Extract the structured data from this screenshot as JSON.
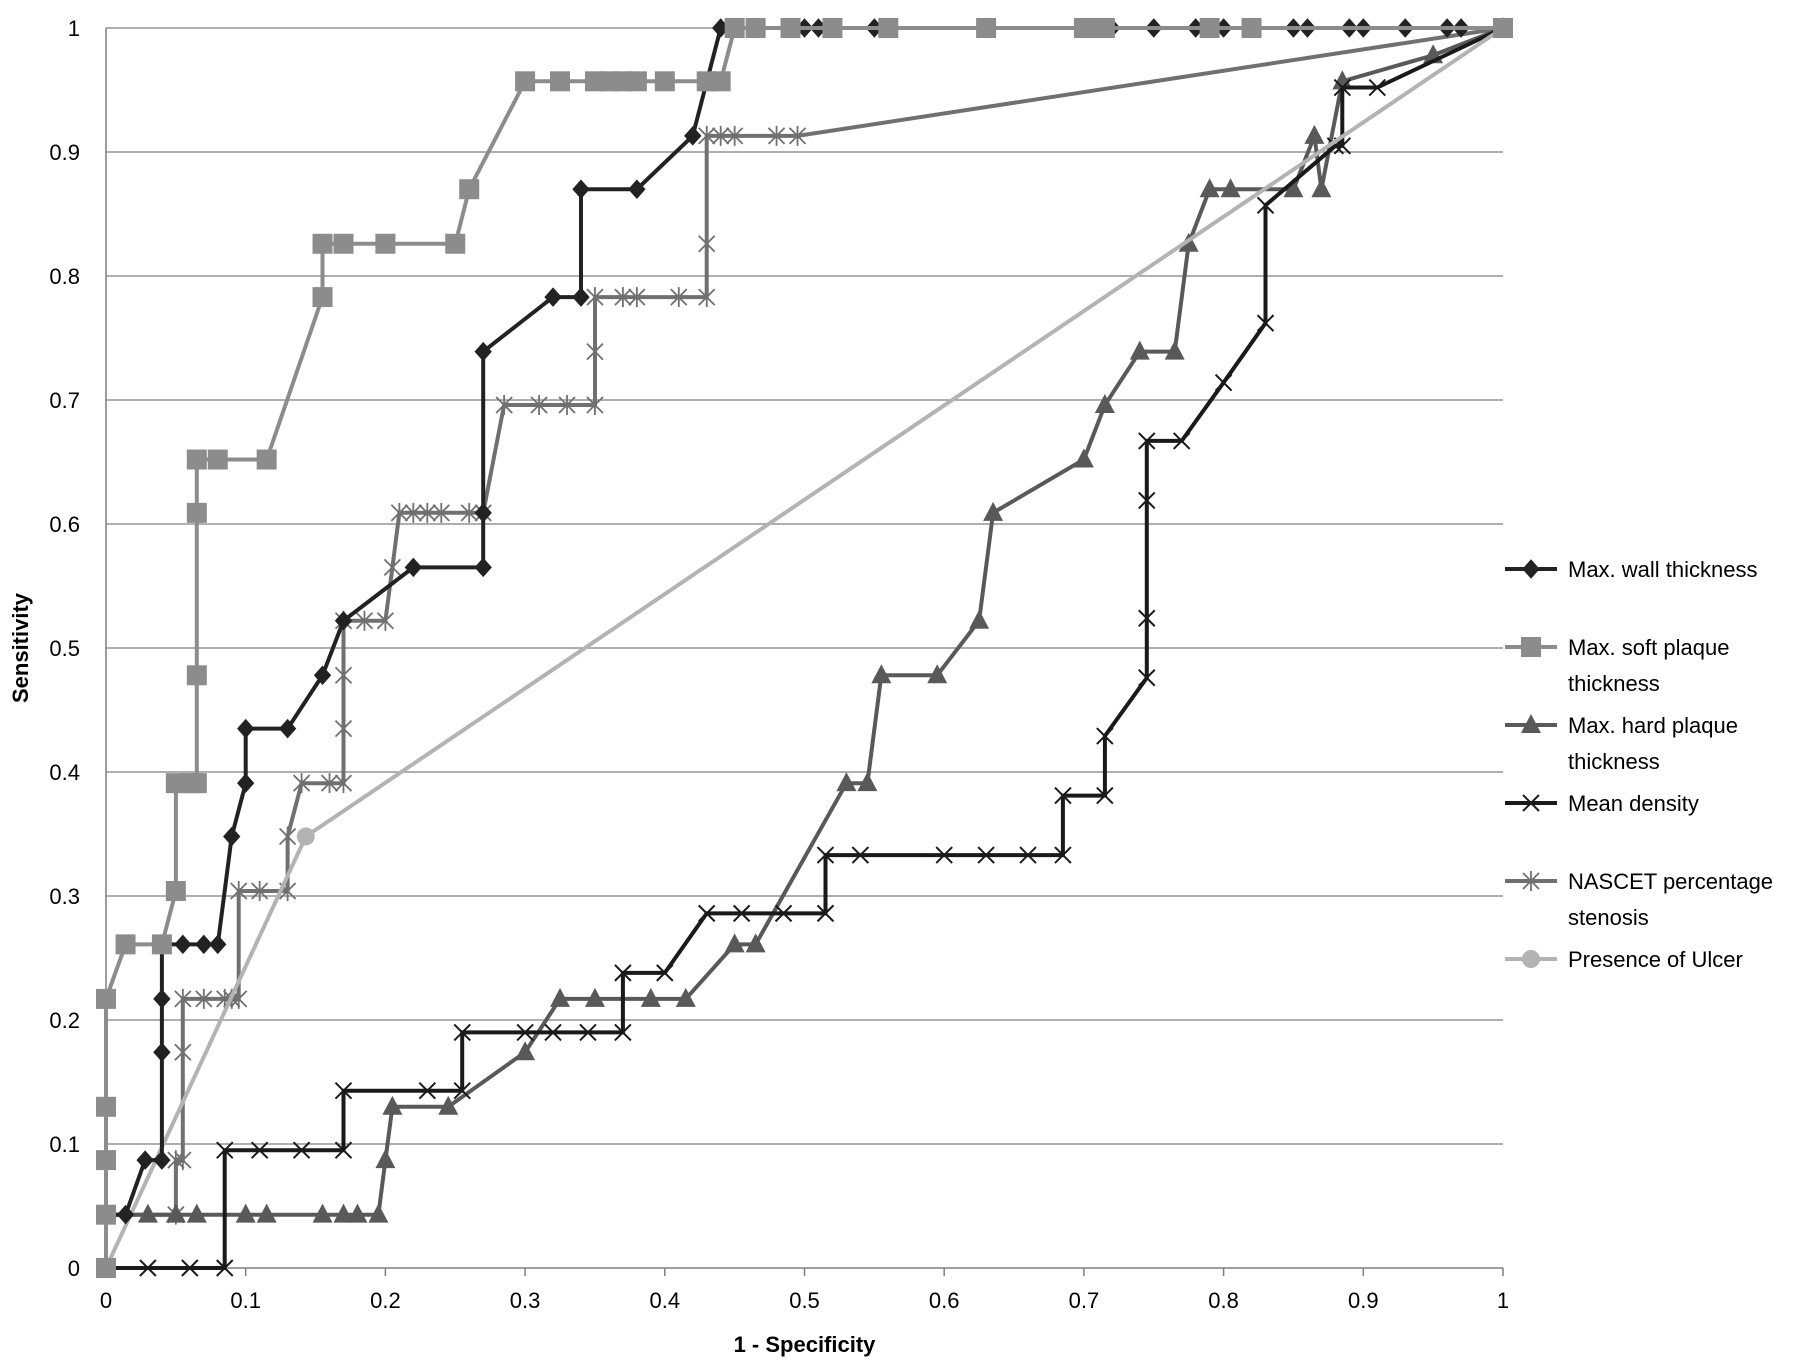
{
  "chart_data": {
    "type": "line",
    "title": "",
    "xlabel": "1 - Specificity",
    "ylabel": "Sensitivity",
    "xlim": [
      0,
      1
    ],
    "ylim": [
      0,
      1
    ],
    "x_ticks": [
      "0",
      "0.1",
      "0.2",
      "0.3",
      "0.4",
      "0.5",
      "0.6",
      "0.7",
      "0.8",
      "0.9",
      "1"
    ],
    "y_ticks": [
      "0",
      "0.1",
      "0.2",
      "0.3",
      "0.4",
      "0.5",
      "0.6",
      "0.7",
      "0.8",
      "0.9",
      "1"
    ],
    "grid": "horizontal",
    "legend_position": "right",
    "series": [
      {
        "name": "Max. wall thickness",
        "marker": "diamond",
        "color": "#222222",
        "points": [
          [
            0,
            0
          ],
          [
            0,
            0.043
          ],
          [
            0.014,
            0.043
          ],
          [
            0.028,
            0.087
          ],
          [
            0.04,
            0.087
          ],
          [
            0.04,
            0.174
          ],
          [
            0.04,
            0.217
          ],
          [
            0.04,
            0.261
          ],
          [
            0.055,
            0.261
          ],
          [
            0.07,
            0.261
          ],
          [
            0.08,
            0.261
          ],
          [
            0.09,
            0.348
          ],
          [
            0.1,
            0.391
          ],
          [
            0.1,
            0.435
          ],
          [
            0.13,
            0.435
          ],
          [
            0.155,
            0.478
          ],
          [
            0.17,
            0.522
          ],
          [
            0.22,
            0.565
          ],
          [
            0.27,
            0.565
          ],
          [
            0.27,
            0.609
          ],
          [
            0.27,
            0.739
          ],
          [
            0.32,
            0.783
          ],
          [
            0.34,
            0.783
          ],
          [
            0.34,
            0.87
          ],
          [
            0.38,
            0.87
          ],
          [
            0.42,
            0.913
          ],
          [
            0.44,
            1
          ],
          [
            0.45,
            1
          ],
          [
            0.5,
            1
          ],
          [
            0.51,
            1
          ],
          [
            0.55,
            1
          ],
          [
            0.7,
            1
          ],
          [
            0.72,
            1
          ],
          [
            0.75,
            1
          ],
          [
            0.78,
            1
          ],
          [
            0.8,
            1
          ],
          [
            0.85,
            1
          ],
          [
            0.86,
            1
          ],
          [
            0.89,
            1
          ],
          [
            0.9,
            1
          ],
          [
            0.93,
            1
          ],
          [
            0.96,
            1
          ],
          [
            0.97,
            1
          ],
          [
            1,
            1
          ]
        ]
      },
      {
        "name": "Max. soft plaque thickness",
        "marker": "square",
        "color": "#8c8c8c",
        "points": [
          [
            0,
            0
          ],
          [
            0,
            0.043
          ],
          [
            0,
            0.087
          ],
          [
            0,
            0.13
          ],
          [
            0,
            0.217
          ],
          [
            0.014,
            0.261
          ],
          [
            0.04,
            0.261
          ],
          [
            0.05,
            0.304
          ],
          [
            0.05,
            0.391
          ],
          [
            0.06,
            0.391
          ],
          [
            0.065,
            0.391
          ],
          [
            0.065,
            0.478
          ],
          [
            0.065,
            0.609
          ],
          [
            0.065,
            0.652
          ],
          [
            0.08,
            0.652
          ],
          [
            0.115,
            0.652
          ],
          [
            0.155,
            0.783
          ],
          [
            0.155,
            0.826
          ],
          [
            0.17,
            0.826
          ],
          [
            0.2,
            0.826
          ],
          [
            0.25,
            0.826
          ],
          [
            0.26,
            0.87
          ],
          [
            0.3,
            0.957
          ],
          [
            0.325,
            0.957
          ],
          [
            0.35,
            0.957
          ],
          [
            0.36,
            0.957
          ],
          [
            0.37,
            0.957
          ],
          [
            0.38,
            0.957
          ],
          [
            0.4,
            0.957
          ],
          [
            0.43,
            0.957
          ],
          [
            0.44,
            0.957
          ],
          [
            0.45,
            1
          ],
          [
            0.465,
            1
          ],
          [
            0.49,
            1
          ],
          [
            0.52,
            1
          ],
          [
            0.56,
            1
          ],
          [
            0.63,
            1
          ],
          [
            0.7,
            1
          ],
          [
            0.71,
            1
          ],
          [
            0.715,
            1
          ],
          [
            0.79,
            1
          ],
          [
            0.82,
            1
          ],
          [
            1,
            1
          ]
        ]
      },
      {
        "name": "Max. hard plaque thickness",
        "marker": "triangle",
        "color": "#595959",
        "points": [
          [
            0,
            0
          ],
          [
            0,
            0.043
          ],
          [
            0.03,
            0.043
          ],
          [
            0.05,
            0.043
          ],
          [
            0.065,
            0.043
          ],
          [
            0.1,
            0.043
          ],
          [
            0.115,
            0.043
          ],
          [
            0.155,
            0.043
          ],
          [
            0.17,
            0.043
          ],
          [
            0.18,
            0.043
          ],
          [
            0.195,
            0.043
          ],
          [
            0.2,
            0.087
          ],
          [
            0.205,
            0.13
          ],
          [
            0.245,
            0.13
          ],
          [
            0.3,
            0.174
          ],
          [
            0.325,
            0.217
          ],
          [
            0.35,
            0.217
          ],
          [
            0.39,
            0.217
          ],
          [
            0.415,
            0.217
          ],
          [
            0.45,
            0.261
          ],
          [
            0.465,
            0.261
          ],
          [
            0.53,
            0.391
          ],
          [
            0.545,
            0.391
          ],
          [
            0.555,
            0.478
          ],
          [
            0.595,
            0.478
          ],
          [
            0.625,
            0.522
          ],
          [
            0.635,
            0.609
          ],
          [
            0.7,
            0.652
          ],
          [
            0.715,
            0.696
          ],
          [
            0.74,
            0.739
          ],
          [
            0.765,
            0.739
          ],
          [
            0.775,
            0.826
          ],
          [
            0.79,
            0.87
          ],
          [
            0.805,
            0.87
          ],
          [
            0.85,
            0.87
          ],
          [
            0.865,
            0.913
          ],
          [
            0.87,
            0.87
          ],
          [
            0.885,
            0.957
          ],
          [
            0.95,
            0.978
          ],
          [
            1,
            1
          ]
        ]
      },
      {
        "name": "Mean density",
        "marker": "x",
        "color": "#1a1a1a",
        "points": [
          [
            0,
            0
          ],
          [
            0.03,
            0
          ],
          [
            0.06,
            0
          ],
          [
            0.085,
            0
          ],
          [
            0.085,
            0.095
          ],
          [
            0.11,
            0.095
          ],
          [
            0.14,
            0.095
          ],
          [
            0.17,
            0.095
          ],
          [
            0.17,
            0.143
          ],
          [
            0.23,
            0.143
          ],
          [
            0.255,
            0.143
          ],
          [
            0.255,
            0.19
          ],
          [
            0.3,
            0.19
          ],
          [
            0.32,
            0.19
          ],
          [
            0.345,
            0.19
          ],
          [
            0.37,
            0.19
          ],
          [
            0.37,
            0.238
          ],
          [
            0.4,
            0.238
          ],
          [
            0.43,
            0.286
          ],
          [
            0.455,
            0.286
          ],
          [
            0.485,
            0.286
          ],
          [
            0.515,
            0.286
          ],
          [
            0.515,
            0.333
          ],
          [
            0.54,
            0.333
          ],
          [
            0.6,
            0.333
          ],
          [
            0.63,
            0.333
          ],
          [
            0.66,
            0.333
          ],
          [
            0.685,
            0.333
          ],
          [
            0.685,
            0.381
          ],
          [
            0.715,
            0.381
          ],
          [
            0.715,
            0.429
          ],
          [
            0.745,
            0.476
          ],
          [
            0.745,
            0.524
          ],
          [
            0.745,
            0.619
          ],
          [
            0.745,
            0.667
          ],
          [
            0.77,
            0.667
          ],
          [
            0.8,
            0.714
          ],
          [
            0.83,
            0.762
          ],
          [
            0.83,
            0.857
          ],
          [
            0.88,
            0.905
          ],
          [
            0.885,
            0.905
          ],
          [
            0.885,
            0.952
          ],
          [
            0.91,
            0.952
          ],
          [
            1,
            1
          ]
        ]
      },
      {
        "name": "NASCET percentage stenosis",
        "marker": "star",
        "color": "#707070",
        "points": [
          [
            0,
            0
          ],
          [
            0,
            0.043
          ],
          [
            0.05,
            0.043
          ],
          [
            0.05,
            0.087
          ],
          [
            0.055,
            0.087
          ],
          [
            0.055,
            0.174
          ],
          [
            0.055,
            0.217
          ],
          [
            0.07,
            0.217
          ],
          [
            0.085,
            0.217
          ],
          [
            0.09,
            0.217
          ],
          [
            0.095,
            0.217
          ],
          [
            0.095,
            0.304
          ],
          [
            0.11,
            0.304
          ],
          [
            0.13,
            0.304
          ],
          [
            0.13,
            0.348
          ],
          [
            0.14,
            0.391
          ],
          [
            0.16,
            0.391
          ],
          [
            0.17,
            0.391
          ],
          [
            0.17,
            0.435
          ],
          [
            0.17,
            0.478
          ],
          [
            0.17,
            0.522
          ],
          [
            0.185,
            0.522
          ],
          [
            0.2,
            0.522
          ],
          [
            0.205,
            0.565
          ],
          [
            0.21,
            0.609
          ],
          [
            0.22,
            0.609
          ],
          [
            0.23,
            0.609
          ],
          [
            0.24,
            0.609
          ],
          [
            0.26,
            0.609
          ],
          [
            0.27,
            0.609
          ],
          [
            0.285,
            0.696
          ],
          [
            0.31,
            0.696
          ],
          [
            0.33,
            0.696
          ],
          [
            0.35,
            0.696
          ],
          [
            0.35,
            0.739
          ],
          [
            0.35,
            0.783
          ],
          [
            0.37,
            0.783
          ],
          [
            0.38,
            0.783
          ],
          [
            0.41,
            0.783
          ],
          [
            0.43,
            0.783
          ],
          [
            0.43,
            0.826
          ],
          [
            0.43,
            0.913
          ],
          [
            0.44,
            0.913
          ],
          [
            0.45,
            0.913
          ],
          [
            0.48,
            0.913
          ],
          [
            0.495,
            0.913
          ],
          [
            1,
            1
          ]
        ]
      },
      {
        "name": "Presence of Ulcer",
        "marker": "circle",
        "color": "#b3b3b3",
        "points": [
          [
            0,
            0
          ],
          [
            0.143,
            0.348
          ],
          [
            1,
            1
          ]
        ]
      }
    ],
    "legend_labels": [
      [
        "Max. wall thickness"
      ],
      [
        "Max. soft plaque",
        "thickness"
      ],
      [
        "Max. hard plaque",
        "thickness"
      ],
      [
        "Mean density"
      ],
      [
        "NASCET percentage",
        "stenosis"
      ],
      [
        "Presence of Ulcer"
      ]
    ]
  }
}
